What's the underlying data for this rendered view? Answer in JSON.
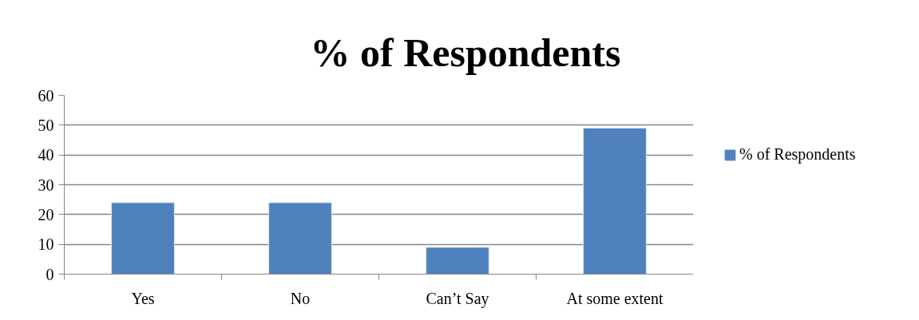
{
  "chart_data": {
    "type": "bar",
    "title": "% of Respondents",
    "categories": [
      "Yes",
      "No",
      "Can’t Say",
      "At some extent"
    ],
    "series": [
      {
        "name": "% of Respondents",
        "color": "#4f81bd",
        "values": [
          24,
          24,
          9,
          49
        ]
      }
    ],
    "ylim": [
      0,
      60
    ],
    "yticks": [
      0,
      10,
      20,
      30,
      40,
      50,
      60
    ],
    "grid": "y",
    "legend": "right"
  }
}
